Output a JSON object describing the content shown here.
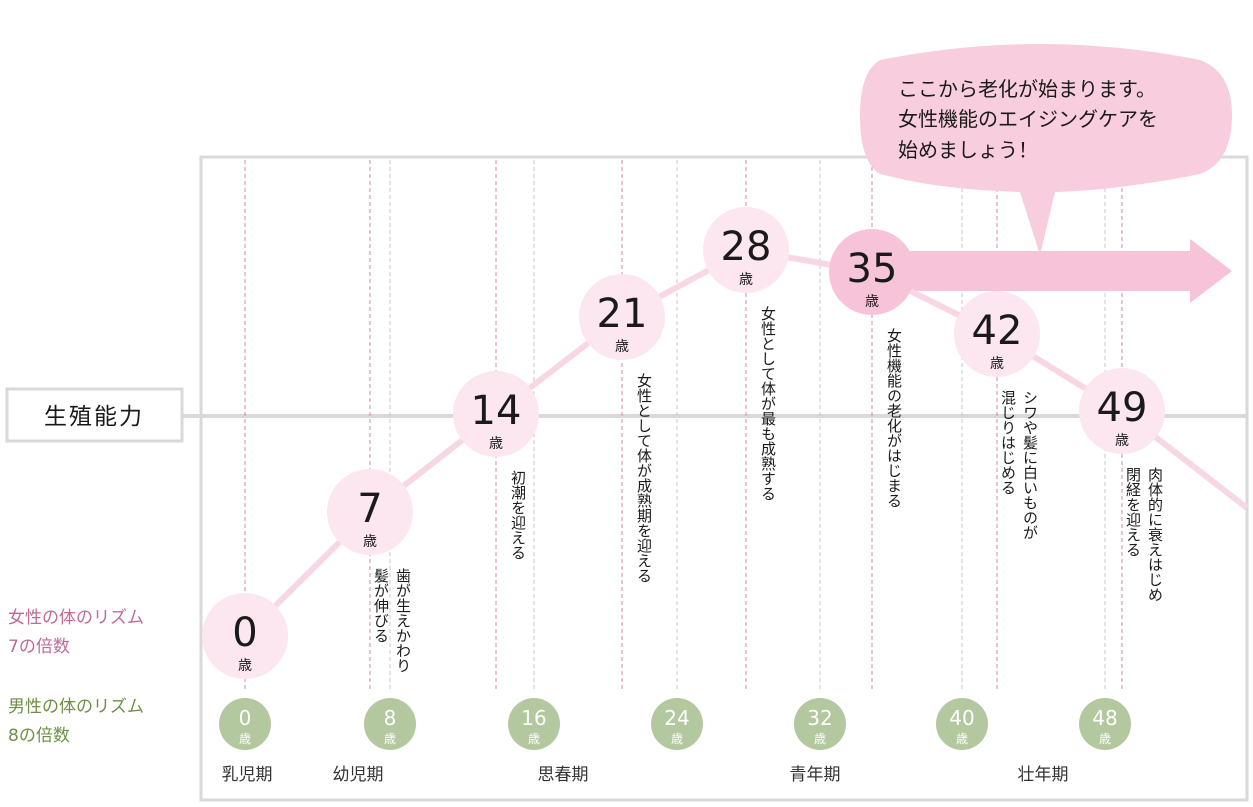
{
  "axis_label": "生殖能力",
  "legend": {
    "female_line1": "女性の体のリズム",
    "female_line2": "7の倍数",
    "male_line1": "男性の体のリズム",
    "male_line2": "8の倍数"
  },
  "unit": "歳",
  "female_ages": [
    {
      "age": "0",
      "caption": []
    },
    {
      "age": "7",
      "caption": [
        "歯が生えかわり",
        "髪が伸びる"
      ]
    },
    {
      "age": "14",
      "caption": [
        "初潮を迎える"
      ]
    },
    {
      "age": "21",
      "caption": [
        "女性として体が成熟期を迎える"
      ]
    },
    {
      "age": "28",
      "caption": [
        "女性として体が最も成熟する"
      ]
    },
    {
      "age": "35",
      "caption": [
        "女性機能の老化がはじまる"
      ]
    },
    {
      "age": "42",
      "caption": [
        "シワや髪に白いものが",
        "混じりはじめる"
      ]
    },
    {
      "age": "49",
      "caption": [
        "肉体的に衰えはじめ",
        "閉経を迎える"
      ]
    }
  ],
  "male_ages": [
    "0",
    "8",
    "16",
    "24",
    "32",
    "40",
    "48"
  ],
  "stages": [
    "乳児期",
    "幼児期",
    "思春期",
    "青年期",
    "壮年期"
  ],
  "bubble": {
    "line1": "ここから老化が始まります。",
    "line2": "女性機能のエイジングケアを",
    "line3": "始めましょう！"
  },
  "colors": {
    "female_circle": "#fce6ef",
    "highlight_circle": "#f6c3d8",
    "line": "#f8d7e5",
    "dash_female": "#d9889f",
    "dash_male": "#c9c9c9",
    "male_circle": "#b4c8a0",
    "frame": "#d9d9d9",
    "bubble": "#f8cddd"
  }
}
